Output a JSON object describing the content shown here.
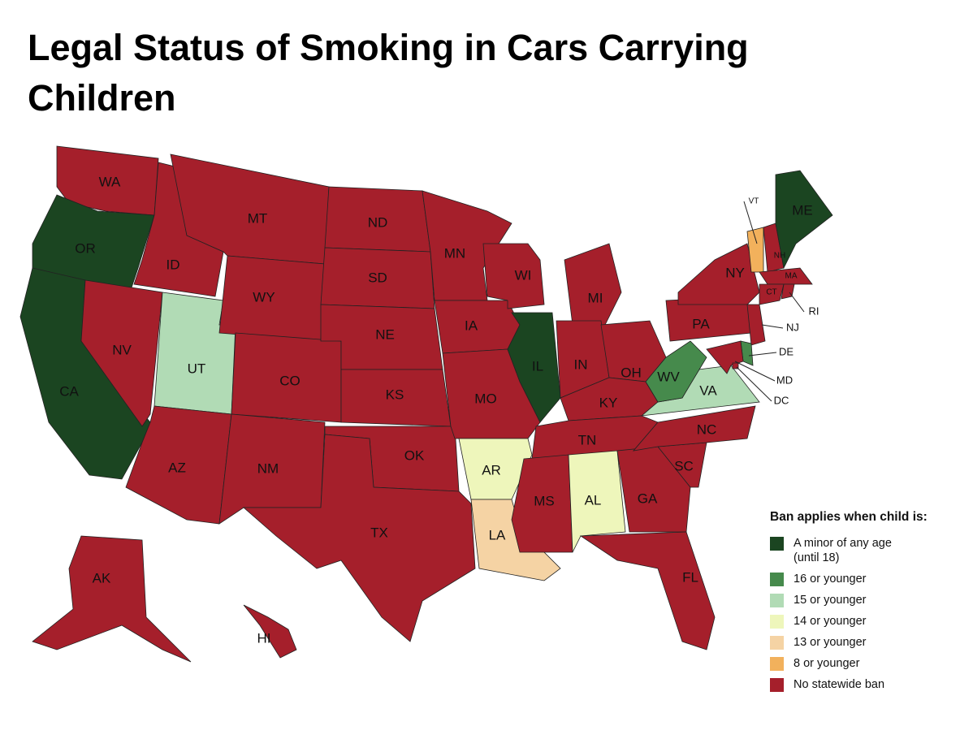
{
  "title": "Legal Status of Smoking in Cars Carrying Children",
  "legend": {
    "title": "Ban applies when child is:",
    "items": [
      {
        "label": "A minor of any age (until 18)",
        "color": "#1b4521"
      },
      {
        "label": "16 or younger",
        "color": "#468a4c"
      },
      {
        "label": "15 or younger",
        "color": "#b1dbb5"
      },
      {
        "label": "14 or younger",
        "color": "#eef6bb"
      },
      {
        "label": "13 or younger",
        "color": "#f5d3a4"
      },
      {
        "label": "8 or younger",
        "color": "#f2b15c"
      },
      {
        "label": "No statewide ban",
        "color": "#a51f2b"
      }
    ]
  },
  "states": [
    {
      "label": "WA",
      "color": "#a51f2b"
    },
    {
      "label": "OR",
      "color": "#1b4521"
    },
    {
      "label": "CA",
      "color": "#1b4521"
    },
    {
      "label": "ID",
      "color": "#a51f2b"
    },
    {
      "label": "NV",
      "color": "#a51f2b"
    },
    {
      "label": "UT",
      "color": "#b1dbb5"
    },
    {
      "label": "AZ",
      "color": "#a51f2b"
    },
    {
      "label": "MT",
      "color": "#a51f2b"
    },
    {
      "label": "WY",
      "color": "#a51f2b"
    },
    {
      "label": "CO",
      "color": "#a51f2b"
    },
    {
      "label": "NM",
      "color": "#a51f2b"
    },
    {
      "label": "ND",
      "color": "#a51f2b"
    },
    {
      "label": "SD",
      "color": "#a51f2b"
    },
    {
      "label": "NE",
      "color": "#a51f2b"
    },
    {
      "label": "KS",
      "color": "#a51f2b"
    },
    {
      "label": "OK",
      "color": "#a51f2b"
    },
    {
      "label": "TX",
      "color": "#a51f2b"
    },
    {
      "label": "MN",
      "color": "#a51f2b"
    },
    {
      "label": "IA",
      "color": "#a51f2b"
    },
    {
      "label": "MO",
      "color": "#a51f2b"
    },
    {
      "label": "AR",
      "color": "#eef6bb"
    },
    {
      "label": "LA",
      "color": "#f5d3a4"
    },
    {
      "label": "WI",
      "color": "#a51f2b"
    },
    {
      "label": "IL",
      "color": "#1b4521"
    },
    {
      "label": "MI",
      "color": "#a51f2b"
    },
    {
      "label": "IN",
      "color": "#a51f2b"
    },
    {
      "label": "OH",
      "color": "#a51f2b"
    },
    {
      "label": "KY",
      "color": "#a51f2b"
    },
    {
      "label": "TN",
      "color": "#a51f2b"
    },
    {
      "label": "MS",
      "color": "#a51f2b"
    },
    {
      "label": "AL",
      "color": "#eef6bb"
    },
    {
      "label": "GA",
      "color": "#a51f2b"
    },
    {
      "label": "FL",
      "color": "#a51f2b"
    },
    {
      "label": "SC",
      "color": "#a51f2b"
    },
    {
      "label": "NC",
      "color": "#a51f2b"
    },
    {
      "label": "VA",
      "color": "#b1dbb5"
    },
    {
      "label": "WV",
      "color": "#468a4c"
    },
    {
      "label": "PA",
      "color": "#a51f2b"
    },
    {
      "label": "NY",
      "color": "#a51f2b"
    },
    {
      "label": "VT",
      "color": "#f2b15c"
    },
    {
      "label": "NH",
      "color": "#a51f2b"
    },
    {
      "label": "ME",
      "color": "#1b4521"
    },
    {
      "label": "MA",
      "color": "#a51f2b"
    },
    {
      "label": "CT",
      "color": "#a51f2b"
    },
    {
      "label": "RI",
      "color": "#a51f2b"
    },
    {
      "label": "NJ",
      "color": "#a51f2b"
    },
    {
      "label": "DE",
      "color": "#468a4c"
    },
    {
      "label": "MD",
      "color": "#a51f2b"
    },
    {
      "label": "DC",
      "color": "#a51f2b"
    },
    {
      "label": "AK",
      "color": "#a51f2b"
    },
    {
      "label": "HI",
      "color": "#a51f2b"
    }
  ]
}
